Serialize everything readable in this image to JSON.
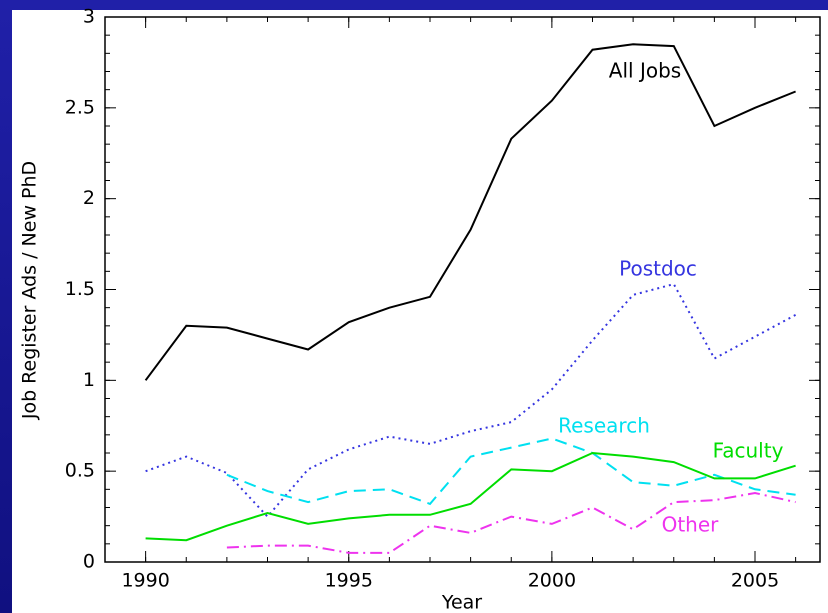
{
  "chart_data": {
    "type": "line",
    "xlabel": "Year",
    "ylabel": "Job Register Ads / New PhD",
    "x": [
      1990,
      1991,
      1992,
      1993,
      1994,
      1995,
      1996,
      1997,
      1998,
      1999,
      2000,
      2001,
      2002,
      2003,
      2004,
      2005,
      2006
    ],
    "series": [
      {
        "name": "All Jobs",
        "color": "#000000",
        "style": "solid",
        "values": [
          1.0,
          1.3,
          1.29,
          1.23,
          1.17,
          1.32,
          1.4,
          1.46,
          1.83,
          2.33,
          2.54,
          2.82,
          2.85,
          2.84,
          2.4,
          2.5,
          2.59
        ]
      },
      {
        "name": "Postdoc",
        "color": "#3535e0",
        "style": "dotted",
        "values": [
          0.5,
          0.58,
          0.49,
          0.25,
          0.51,
          0.62,
          0.69,
          0.65,
          0.72,
          0.77,
          0.95,
          1.22,
          1.47,
          1.53,
          1.12,
          1.24,
          1.36
        ]
      },
      {
        "name": "Research",
        "color": "#00e0f0",
        "style": "dashed",
        "values": [
          null,
          null,
          0.48,
          0.39,
          0.33,
          0.39,
          0.4,
          0.32,
          0.58,
          0.63,
          0.68,
          0.6,
          0.44,
          0.42,
          0.48,
          0.4,
          0.37
        ]
      },
      {
        "name": "Faculty",
        "color": "#00dd00",
        "style": "solid",
        "values": [
          0.13,
          0.12,
          0.2,
          0.27,
          0.21,
          0.24,
          0.26,
          0.26,
          0.32,
          0.51,
          0.5,
          0.6,
          0.58,
          0.55,
          0.46,
          0.46,
          0.53
        ]
      },
      {
        "name": "Other",
        "color": "#ee33ee",
        "style": "dashdot",
        "values": [
          null,
          null,
          0.08,
          0.09,
          0.09,
          0.05,
          0.05,
          0.2,
          0.16,
          0.25,
          0.21,
          0.3,
          0.18,
          0.33,
          0.34,
          0.38,
          0.33
        ]
      }
    ],
    "xlim": [
      1989,
      2006.6
    ],
    "ylim": [
      0,
      3
    ],
    "xticks": [
      1990,
      1995,
      2000,
      2005
    ],
    "yticks": [
      0,
      0.5,
      1,
      1.5,
      2,
      2.5,
      3
    ],
    "xticks_minor": [
      1989,
      1990,
      1991,
      1992,
      1993,
      1994,
      1995,
      1996,
      1997,
      1998,
      1999,
      2000,
      2001,
      2002,
      2003,
      2004,
      2005,
      2006
    ],
    "yticks_minor": [
      0,
      0.1,
      0.2,
      0.3,
      0.4,
      0.5,
      0.6,
      0.7,
      0.8,
      0.9,
      1,
      1.1,
      1.2,
      1.3,
      1.4,
      1.5,
      1.6,
      1.7,
      1.8,
      1.9,
      2,
      2.1,
      2.2,
      2.3,
      2.4,
      2.5,
      2.6,
      2.7,
      2.8,
      2.9,
      3
    ]
  }
}
